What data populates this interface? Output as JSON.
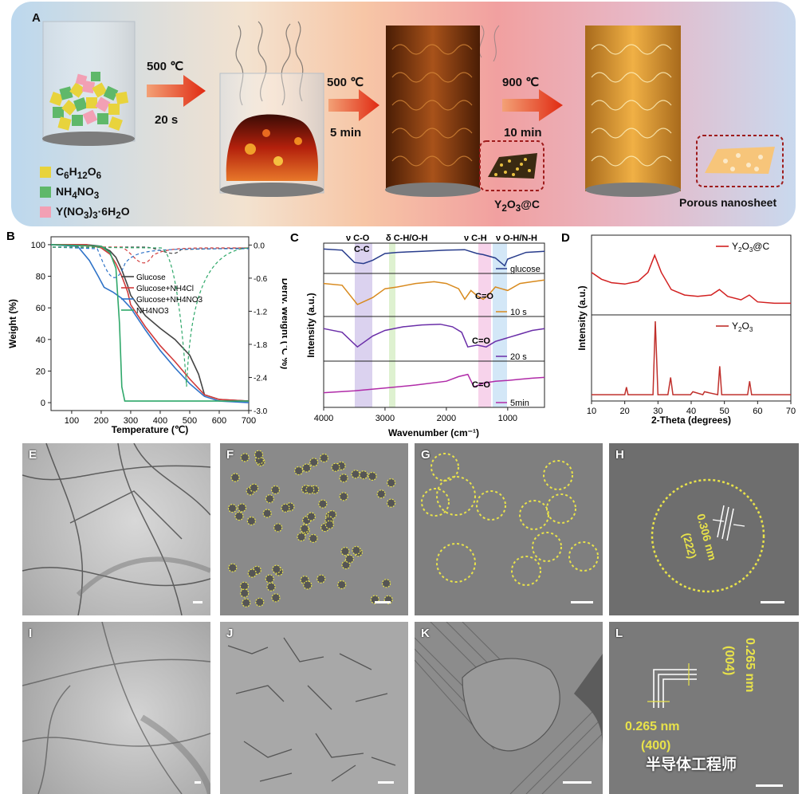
{
  "panelA": {
    "label": "A",
    "steps": [
      {
        "temp": "500 ℃",
        "time": "20 s"
      },
      {
        "temp": "500 ℃",
        "time": "5 min"
      },
      {
        "temp": "900 ℃",
        "time": "10 min"
      }
    ],
    "legend": [
      {
        "formula": "C6H12O6",
        "color": "#e8d33c"
      },
      {
        "formula": "NH4NO3",
        "color": "#5fb86a"
      },
      {
        "formula": "Y(NO3)3·6H2O",
        "color": "#f2a0b4"
      }
    ],
    "product1": "Y2O3@C",
    "product2": "Porous nanosheet"
  },
  "chart_data": [
    {
      "panel": "B",
      "type": "line",
      "xlabel": "Temperature (℃)",
      "ylabel": "Weight (%)",
      "y2label": "Deriv. Weight (℃ %)",
      "xlim": [
        30,
        700
      ],
      "ylim": [
        -5,
        105
      ],
      "y2lim": [
        -3.0,
        0.15
      ],
      "xticks": [
        100,
        200,
        300,
        400,
        500,
        600,
        700
      ],
      "yticks": [
        0,
        20,
        40,
        60,
        80,
        100
      ],
      "y2ticks": [
        0.0,
        -0.6,
        -1.2,
        -1.8,
        -2.4,
        -3.0
      ],
      "legend_position": "center-right",
      "series": [
        {
          "name": "Glucose",
          "color": "#444444",
          "x": [
            30,
            150,
            200,
            230,
            250,
            270,
            290,
            300,
            350,
            400,
            450,
            500,
            530,
            550,
            600,
            700
          ],
          "y": [
            100,
            100,
            99,
            96,
            92,
            84,
            74,
            68,
            55,
            47,
            40,
            30,
            18,
            5,
            2,
            1
          ]
        },
        {
          "name": "Glucose+NH4Cl",
          "color": "#d23b3b",
          "x": [
            30,
            150,
            200,
            230,
            250,
            270,
            290,
            300,
            350,
            400,
            450,
            500,
            550,
            600,
            700
          ],
          "y": [
            100,
            100,
            98,
            94,
            88,
            80,
            70,
            62,
            48,
            36,
            26,
            15,
            5,
            2,
            1
          ]
        },
        {
          "name": "Glucose+NH4NO3",
          "color": "#2f73c8",
          "x": [
            30,
            120,
            160,
            190,
            210,
            240,
            270,
            300,
            350,
            400,
            450,
            500,
            550,
            600,
            700
          ],
          "y": [
            100,
            99,
            90,
            80,
            73,
            70,
            66,
            60,
            46,
            33,
            22,
            12,
            4,
            1,
            0
          ]
        },
        {
          "name": "NH4NO3",
          "color": "#2fa86a",
          "x": [
            30,
            200,
            230,
            250,
            262,
            270,
            280,
            700
          ],
          "y": [
            100,
            99,
            95,
            85,
            50,
            10,
            1,
            1
          ]
        }
      ]
    },
    {
      "panel": "C",
      "type": "line",
      "xlabel": "Wavenumber (cm⁻¹)",
      "ylabel": "Intensity (a.u.)",
      "xlim": [
        4000,
        400
      ],
      "xticks": [
        4000,
        3000,
        2000,
        1000
      ],
      "band_labels": [
        "ν C-O",
        "C-C",
        "δ C-H/O-H",
        "ν C-H",
        "ν O-H/N-H"
      ],
      "annotations": [
        "C=O",
        "C=O",
        "C=O"
      ],
      "series": [
        {
          "name": "glucose",
          "color": "#283c8c",
          "x": [
            4000,
            3700,
            3500,
            3350,
            3200,
            3000,
            2800,
            2400,
            2000,
            1700,
            1500,
            1400,
            1200,
            1050,
            1000,
            900,
            700,
            400
          ],
          "y": [
            0.95,
            0.9,
            0.35,
            0.3,
            0.45,
            0.75,
            0.8,
            0.85,
            0.9,
            0.92,
            0.75,
            0.7,
            0.55,
            0.2,
            0.5,
            0.6,
            0.8,
            0.85
          ]
        },
        {
          "name": "10 s",
          "color": "#d88a1e",
          "x": [
            4000,
            3700,
            3450,
            3200,
            3000,
            2800,
            2500,
            2200,
            2000,
            1800,
            1700,
            1600,
            1500,
            1400,
            1300,
            1200,
            1100,
            1000,
            800,
            600,
            400
          ],
          "y": [
            0.85,
            0.8,
            0.25,
            0.45,
            0.7,
            0.75,
            0.85,
            0.9,
            0.85,
            0.7,
            0.4,
            0.65,
            0.5,
            0.4,
            0.55,
            0.75,
            0.7,
            0.65,
            0.85,
            0.9,
            0.95
          ]
        },
        {
          "name": "20 s",
          "color": "#6a2ea8",
          "x": [
            4000,
            3700,
            3450,
            3200,
            3000,
            2700,
            2400,
            2100,
            1900,
            1750,
            1650,
            1500,
            1350,
            1200,
            1000,
            800,
            600,
            400
          ],
          "y": [
            0.8,
            0.7,
            0.3,
            0.6,
            0.75,
            0.85,
            0.9,
            0.92,
            0.85,
            0.7,
            0.3,
            0.35,
            0.3,
            0.45,
            0.55,
            0.65,
            0.75,
            0.8
          ]
        },
        {
          "name": "5min",
          "color": "#b02ba8",
          "x": [
            4000,
            3500,
            3000,
            2500,
            2000,
            1800,
            1650,
            1550,
            1400,
            1200,
            1000,
            800,
            600,
            400
          ],
          "y": [
            0.3,
            0.35,
            0.42,
            0.5,
            0.6,
            0.72,
            0.78,
            0.45,
            0.55,
            0.6,
            0.62,
            0.65,
            0.68,
            0.7
          ]
        }
      ]
    },
    {
      "panel": "D",
      "type": "line",
      "xlabel": "2-Theta (degrees)",
      "ylabel": "Intensity (a.u.)",
      "xlim": [
        10,
        70
      ],
      "xticks": [
        10,
        20,
        30,
        40,
        50,
        60,
        70
      ],
      "series": [
        {
          "name": "Y2O3@C",
          "color": "#d22020",
          "x": [
            10,
            13,
            16,
            20,
            24,
            27,
            29,
            31,
            34,
            38,
            42,
            46,
            48.5,
            51,
            55,
            57.5,
            60,
            65,
            70
          ],
          "y": [
            0.55,
            0.45,
            0.4,
            0.38,
            0.42,
            0.55,
            0.8,
            0.55,
            0.3,
            0.22,
            0.2,
            0.22,
            0.3,
            0.2,
            0.15,
            0.22,
            0.12,
            0.1,
            0.1
          ]
        },
        {
          "name": "Y2O3",
          "color": "#c0302c",
          "x": [
            10,
            20,
            20.5,
            21,
            28.5,
            29.2,
            30,
            33,
            33.8,
            34.5,
            36,
            39.8,
            40.5,
            43.5,
            44,
            48,
            48.6,
            49.2,
            53,
            57,
            57.6,
            58.2,
            60,
            70
          ],
          "y": [
            0.02,
            0.02,
            0.12,
            0.02,
            0.02,
            1.0,
            0.02,
            0.02,
            0.25,
            0.02,
            0.02,
            0.02,
            0.06,
            0.02,
            0.06,
            0.02,
            0.4,
            0.02,
            0.02,
            0.02,
            0.2,
            0.02,
            0.02,
            0.02
          ]
        }
      ]
    }
  ],
  "tem_panels": [
    {
      "label": "E"
    },
    {
      "label": "F"
    },
    {
      "label": "G"
    },
    {
      "label": "H",
      "lattice": "0.306 nm",
      "plane": "(222)"
    },
    {
      "label": "I"
    },
    {
      "label": "J"
    },
    {
      "label": "K"
    },
    {
      "label": "L",
      "lattice1": "0.265 nm",
      "plane1": "(400)",
      "lattice2": "0.265 nm",
      "plane2": "(004)"
    }
  ],
  "watermark": "半导体工程师"
}
